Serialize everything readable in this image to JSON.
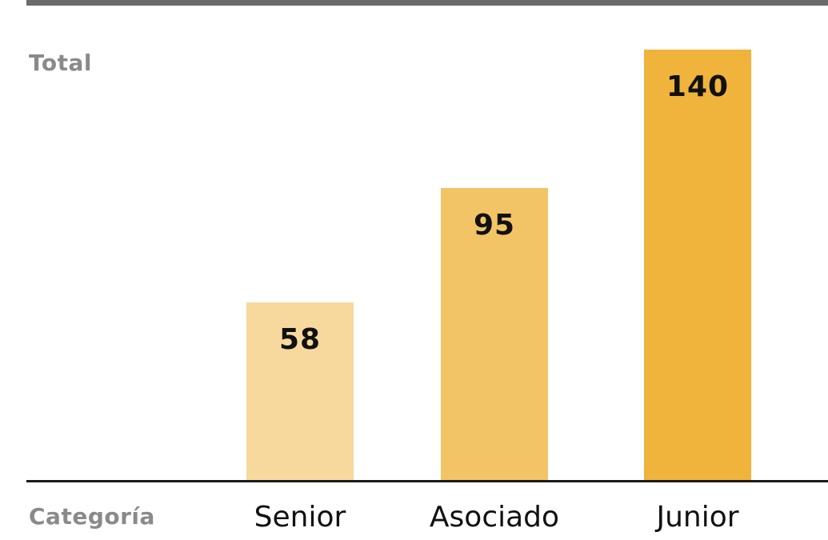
{
  "chart_data": {
    "type": "bar",
    "ylabel": "Total",
    "xlabel": "Categoría",
    "categories": [
      "Senior",
      "Asociado",
      "Junior"
    ],
    "values": [
      58,
      95,
      140
    ],
    "colors": [
      "#f7d99e",
      "#f3c466",
      "#f0b33b"
    ],
    "ylim": [
      0,
      140
    ],
    "grid": false,
    "legend": "none"
  }
}
